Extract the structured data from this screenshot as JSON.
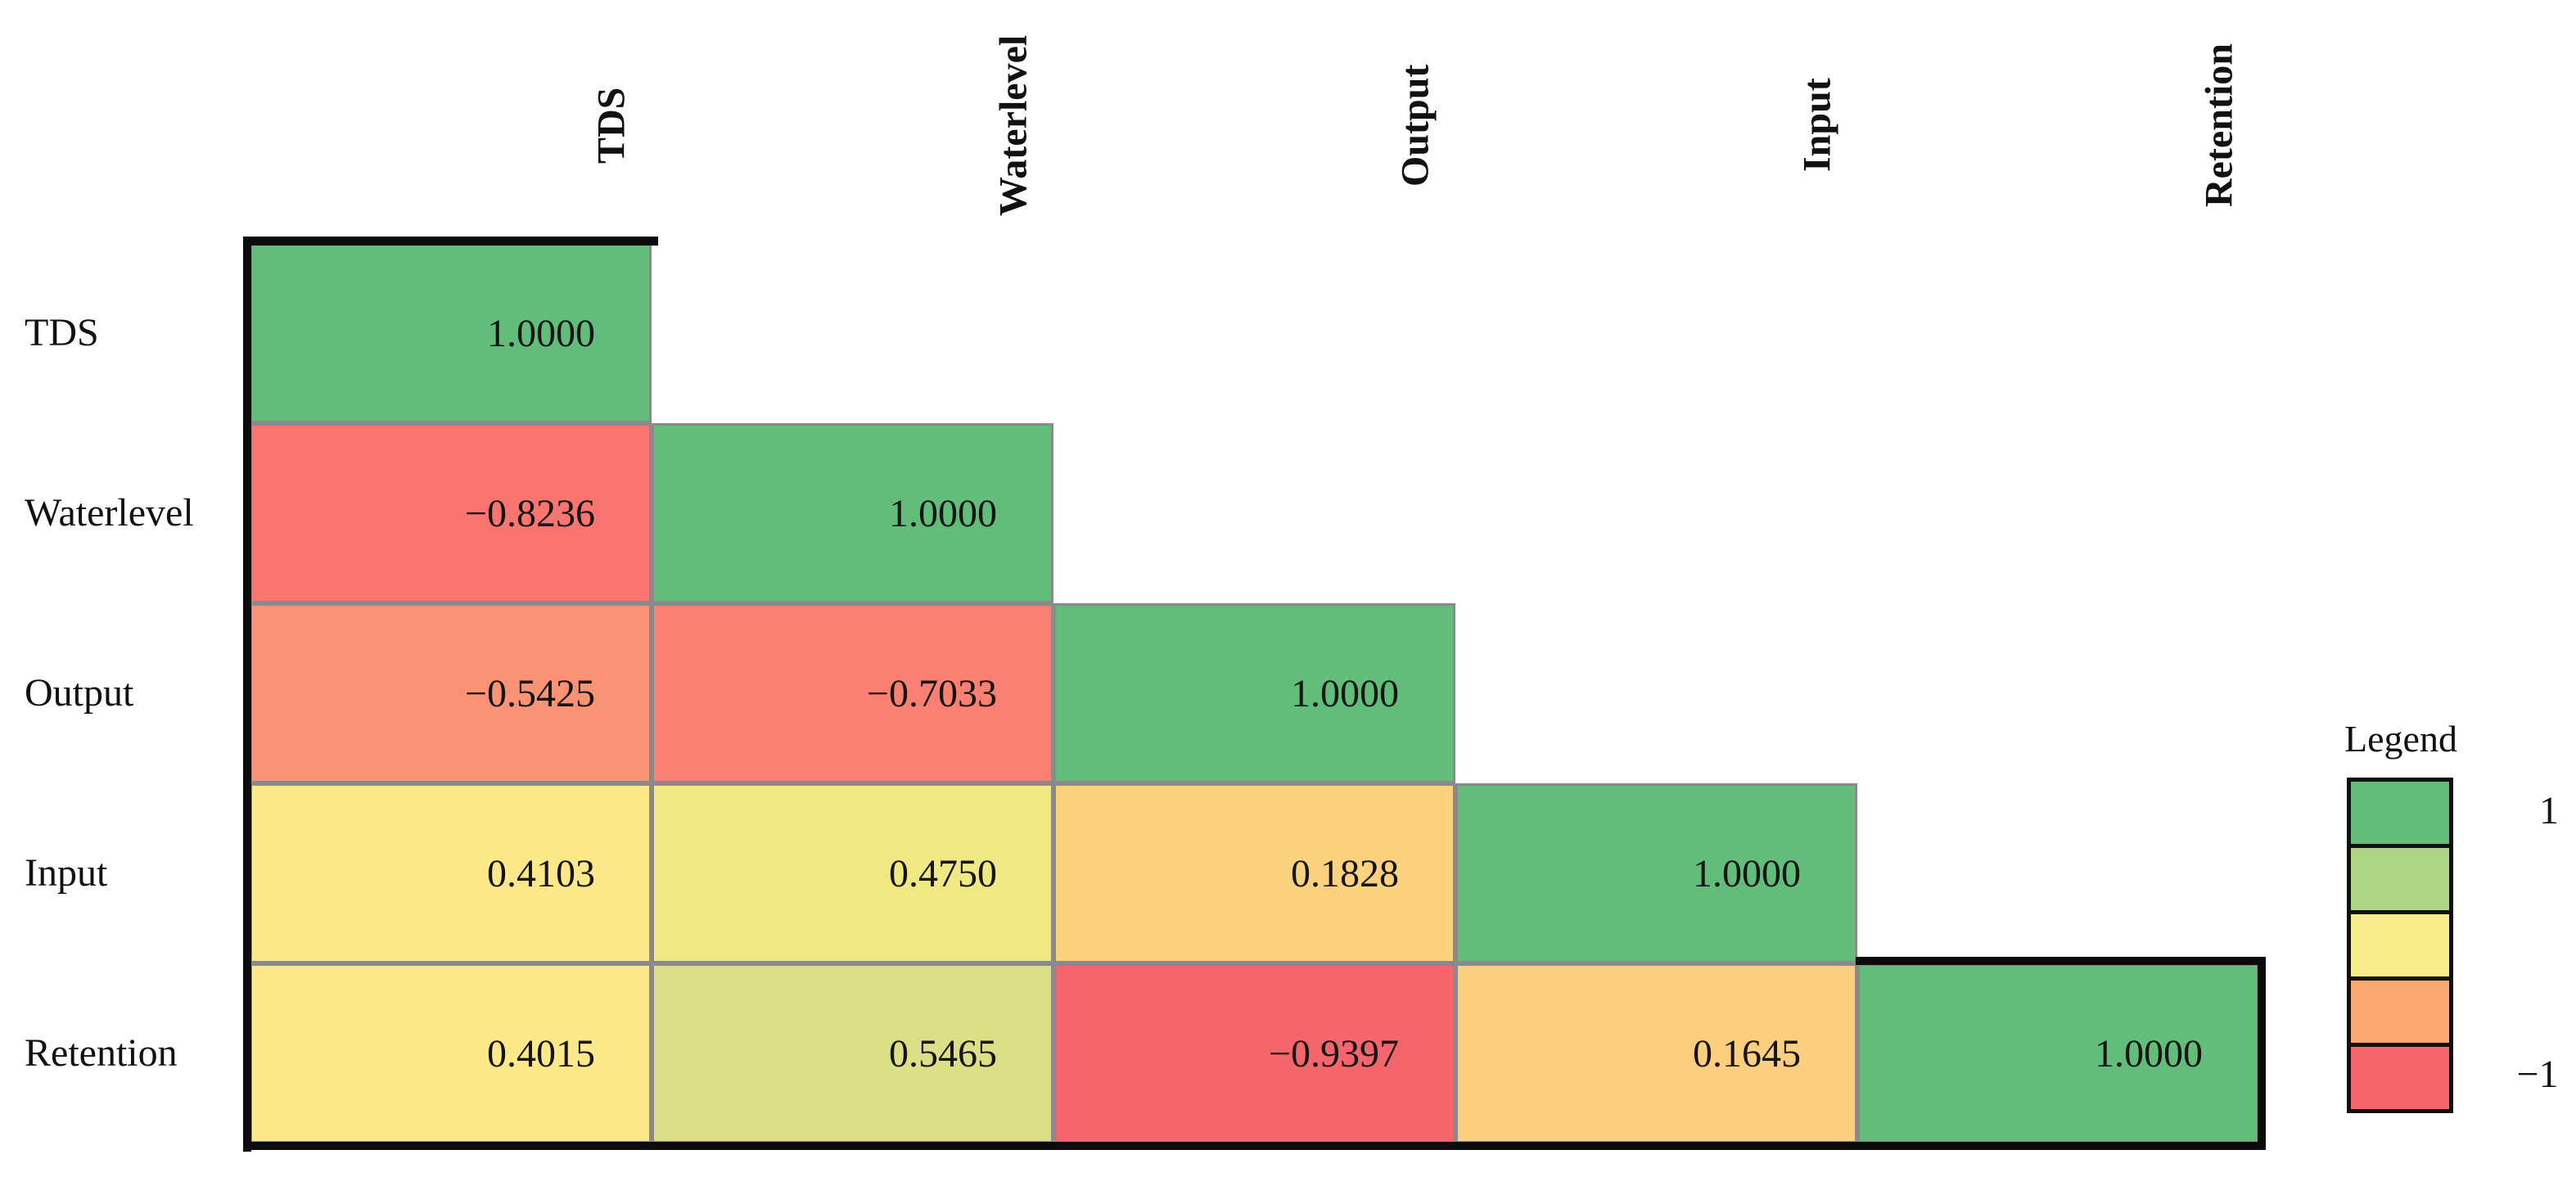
{
  "figure": {
    "background": "#ffffff"
  },
  "legend": {
    "title": "Legend",
    "max_label": "1",
    "min_label": "−1",
    "colors": [
      "#62BD7B",
      "#AED584",
      "#FAEE8C",
      "#FBA771",
      "#F5656C"
    ]
  },
  "chart_data": {
    "type": "heatmap",
    "subtype": "correlation-matrix-lower-triangle",
    "variables": [
      "TDS",
      "Waterlevel",
      "Output",
      "Input",
      "Retention"
    ],
    "matrix": [
      [
        1.0
      ],
      [
        -0.8236,
        1.0
      ],
      [
        -0.5425,
        -0.7033,
        1.0
      ],
      [
        0.4103,
        0.475,
        0.1828,
        1.0
      ],
      [
        0.4015,
        0.5465,
        -0.9397,
        0.1645,
        1.0
      ]
    ],
    "cell_labels": [
      [
        "1.0000"
      ],
      [
        "−0.8236",
        "1.0000"
      ],
      [
        "−0.5425",
        "−0.7033",
        "1.0000"
      ],
      [
        "0.4103",
        "0.4750",
        "0.1828",
        "1.0000"
      ],
      [
        "0.4015",
        "0.5465",
        "−0.9397",
        "0.1645",
        "1.0000"
      ]
    ],
    "cell_colors": [
      [
        "#62BD7B"
      ],
      [
        "#FA7470",
        "#62BD7B"
      ],
      [
        "#FA9275",
        "#F98072",
        "#62BD7B"
      ],
      [
        "#FDE98A",
        "#EFE883",
        "#FDD27E",
        "#62BD7B"
      ],
      [
        "#FDE98A",
        "#DBE087",
        "#F5656C",
        "#FBCF7D",
        "#62BD7B"
      ]
    ],
    "value_range": [
      -1,
      1
    ],
    "grid_color": "#8a8a8a",
    "outer_border_color": "#0c0c0c",
    "legend_position": "right"
  }
}
